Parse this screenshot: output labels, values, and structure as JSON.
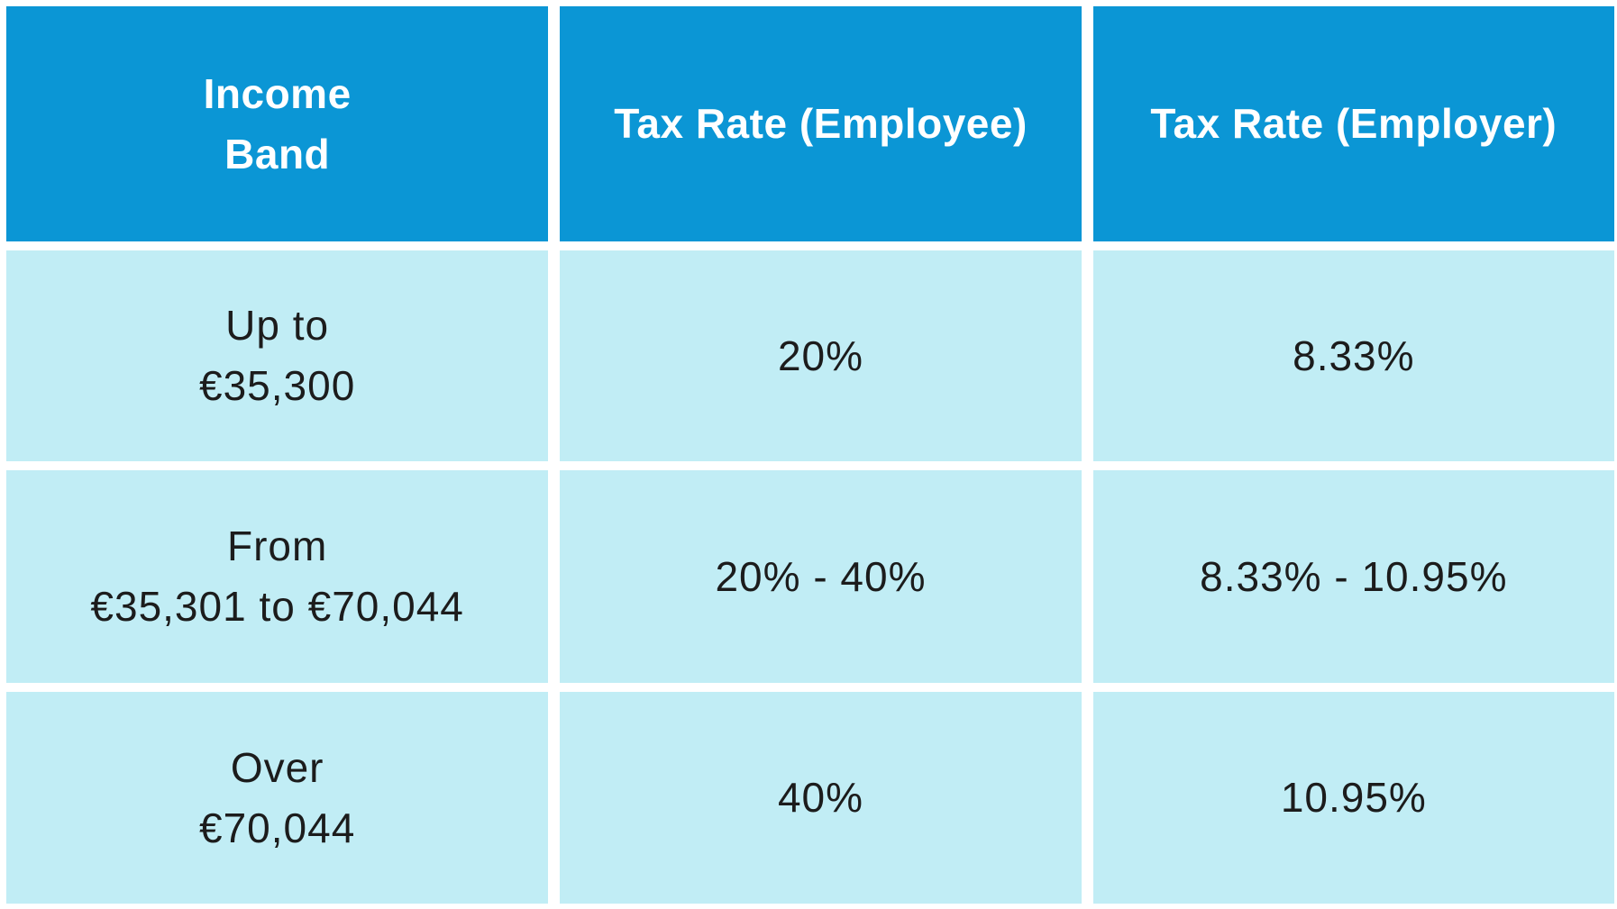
{
  "table": {
    "title_semantic": "Income tax bands with employee and employer rates",
    "accent_color": "#0b96d5",
    "row_color": "#c1edf5",
    "header_text_color": "#ffffff",
    "body_text_color": "#1c1c1c",
    "header": {
      "income_band": "Income\nBand",
      "employee_rate": "Tax Rate (Employee)",
      "employer_rate": "Tax Rate (Employer)"
    },
    "rows": [
      {
        "income_band": "Up to\n€35,300",
        "employee_rate": "20%",
        "employer_rate": "8.33%"
      },
      {
        "income_band": "From\n€35,301 to €70,044",
        "employee_rate": "20% - 40%",
        "employer_rate": "8.33% - 10.95%"
      },
      {
        "income_band": "Over\n€70,044",
        "employee_rate": "40%",
        "employer_rate": "10.95%"
      }
    ]
  },
  "chart_data": {
    "type": "table",
    "columns": [
      "Income Band",
      "Tax Rate (Employee)",
      "Tax Rate (Employer)"
    ],
    "rows": [
      [
        "Up to €35,300",
        "20%",
        "8.33%"
      ],
      [
        "From €35,301 to €70,044",
        "20% - 40%",
        "8.33% - 10.95%"
      ],
      [
        "Over €70,044",
        "40%",
        "10.95%"
      ]
    ]
  }
}
